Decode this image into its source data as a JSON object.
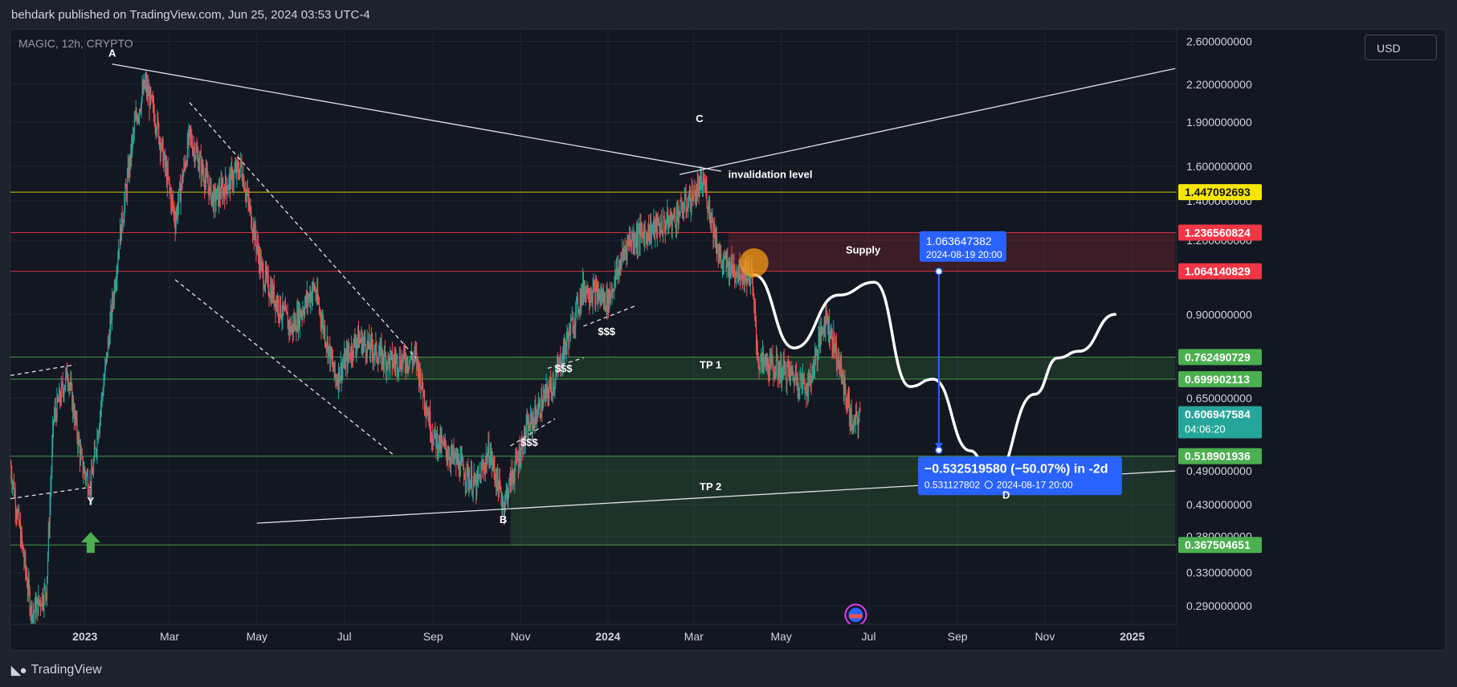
{
  "header": {
    "published": "behdark published on TradingView.com, Jun 25, 2024 03:53 UTC-4"
  },
  "symbol": "MAGIC, 12h, CRYPTO",
  "currency": "USD",
  "footer": {
    "brand": "TradingView"
  },
  "colors": {
    "bg": "#131722",
    "up": "#26a69a",
    "down": "#ef5350",
    "grid": "#1f2430",
    "green_zone": "#4caf50",
    "supply_zone": "#f23645",
    "yellow": "#f7e600",
    "blue": "#2962ff"
  },
  "chart_data": {
    "type": "candlestick",
    "y_scale": "log",
    "ylim": [
      0.27,
      2.72
    ],
    "y_ticks": [
      {
        "value": 2.6,
        "label": "2.600000000"
      },
      {
        "value": 2.2,
        "label": "2.200000000"
      },
      {
        "value": 1.9,
        "label": "1.900000000"
      },
      {
        "value": 1.6,
        "label": "1.600000000"
      },
      {
        "value": 1.4,
        "label": "1.400000000"
      },
      {
        "value": 1.2,
        "label": "1.200000000"
      },
      {
        "value": 0.9,
        "label": "0.900000000"
      },
      {
        "value": 0.65,
        "label": "0.650000000"
      },
      {
        "value": 0.49,
        "label": "0.490000000"
      },
      {
        "value": 0.43,
        "label": "0.430000000"
      },
      {
        "value": 0.38,
        "label": "0.380000000"
      },
      {
        "value": 0.33,
        "label": "0.330000000"
      },
      {
        "value": 0.29,
        "label": "0.290000000"
      }
    ],
    "x_ticks": [
      {
        "date": "2023-01-01",
        "label": "2023",
        "bold": true
      },
      {
        "date": "2023-03-01",
        "label": "Mar"
      },
      {
        "date": "2023-05-01",
        "label": "May"
      },
      {
        "date": "2023-07-01",
        "label": "Jul"
      },
      {
        "date": "2023-09-01",
        "label": "Sep"
      },
      {
        "date": "2023-11-01",
        "label": "Nov"
      },
      {
        "date": "2024-01-01",
        "label": "2024",
        "bold": true
      },
      {
        "date": "2024-03-01",
        "label": "Mar"
      },
      {
        "date": "2024-05-01",
        "label": "May"
      },
      {
        "date": "2024-07-01",
        "label": "Jul"
      },
      {
        "date": "2024-09-01",
        "label": "Sep"
      },
      {
        "date": "2024-11-01",
        "label": "Nov"
      },
      {
        "date": "2025-01-01",
        "label": "2025",
        "bold": true
      }
    ],
    "price_path": [
      {
        "date": "2022-11-10",
        "price": 0.5
      },
      {
        "date": "2022-11-25",
        "price": 0.28
      },
      {
        "date": "2022-12-05",
        "price": 0.31
      },
      {
        "date": "2022-12-10",
        "price": 0.6
      },
      {
        "date": "2022-12-20",
        "price": 0.72
      },
      {
        "date": "2022-12-30",
        "price": 0.5
      },
      {
        "date": "2023-01-05",
        "price": 0.46
      },
      {
        "date": "2023-01-15",
        "price": 0.72
      },
      {
        "date": "2023-01-25",
        "price": 1.2
      },
      {
        "date": "2023-02-05",
        "price": 1.9
      },
      {
        "date": "2023-02-12",
        "price": 2.2
      },
      {
        "date": "2023-02-20",
        "price": 1.9
      },
      {
        "date": "2023-03-05",
        "price": 1.3
      },
      {
        "date": "2023-03-15",
        "price": 1.8
      },
      {
        "date": "2023-04-01",
        "price": 1.4
      },
      {
        "date": "2023-04-20",
        "price": 1.6
      },
      {
        "date": "2023-05-05",
        "price": 1.05
      },
      {
        "date": "2023-05-25",
        "price": 0.85
      },
      {
        "date": "2023-06-10",
        "price": 1.0
      },
      {
        "date": "2023-06-25",
        "price": 0.7
      },
      {
        "date": "2023-07-10",
        "price": 0.82
      },
      {
        "date": "2023-08-01",
        "price": 0.75
      },
      {
        "date": "2023-08-20",
        "price": 0.76
      },
      {
        "date": "2023-09-01",
        "price": 0.56
      },
      {
        "date": "2023-09-20",
        "price": 0.5
      },
      {
        "date": "2023-10-01",
        "price": 0.46
      },
      {
        "date": "2023-10-10",
        "price": 0.53
      },
      {
        "date": "2023-10-20",
        "price": 0.43
      },
      {
        "date": "2023-11-05",
        "price": 0.57
      },
      {
        "date": "2023-11-25",
        "price": 0.7
      },
      {
        "date": "2023-12-15",
        "price": 1.0
      },
      {
        "date": "2024-01-01",
        "price": 0.95
      },
      {
        "date": "2024-01-15",
        "price": 1.2
      },
      {
        "date": "2024-02-15",
        "price": 1.3
      },
      {
        "date": "2024-03-08",
        "price": 1.5
      },
      {
        "date": "2024-03-20",
        "price": 1.1
      },
      {
        "date": "2024-04-10",
        "price": 1.05
      },
      {
        "date": "2024-04-15",
        "price": 0.75
      },
      {
        "date": "2024-05-05",
        "price": 0.72
      },
      {
        "date": "2024-05-20",
        "price": 0.68
      },
      {
        "date": "2024-06-01",
        "price": 0.9
      },
      {
        "date": "2024-06-10",
        "price": 0.75
      },
      {
        "date": "2024-06-20",
        "price": 0.58
      },
      {
        "date": "2024-06-25",
        "price": 0.607
      }
    ],
    "horizontal_levels": [
      {
        "value": 1.447092693,
        "label": "1.447092693",
        "color": "#f7e600",
        "text_color": "#131722",
        "line": "yellow"
      },
      {
        "value": 1.236560824,
        "label": "1.236560824",
        "color": "#f23645",
        "text_color": "#ffffff"
      },
      {
        "value": 1.064140829,
        "label": "1.064140829",
        "color": "#f23645",
        "text_color": "#ffffff"
      },
      {
        "value": 0.762490729,
        "label": "0.762490729",
        "color": "#4caf50",
        "text_color": "#ffffff"
      },
      {
        "value": 0.699902113,
        "label": "0.699902113",
        "color": "#4caf50",
        "text_color": "#ffffff"
      },
      {
        "value": 0.518901936,
        "label": "0.518901936",
        "color": "#4caf50",
        "text_color": "#ffffff"
      },
      {
        "value": 0.367504651,
        "label": "0.367504651",
        "color": "#4caf50",
        "text_color": "#ffffff"
      }
    ],
    "current_price": {
      "value": 0.606947584,
      "label": "0.606947584",
      "countdown": "04:06:20",
      "color": "#26a69a"
    },
    "zones": [
      {
        "name": "Supply",
        "from": "2024-03-25",
        "to": "2025-01-31",
        "low": 1.064140829,
        "high": 1.236560824,
        "color": "#f23645"
      },
      {
        "name": "TP 1",
        "from": "2023-08-01",
        "to": "2025-01-31",
        "low": 0.699902113,
        "high": 0.762490729,
        "color": "#4caf50"
      },
      {
        "name": "TP 2",
        "from": "2023-10-25",
        "to": "2025-01-31",
        "low": 0.367504651,
        "high": 0.518901936,
        "color": "#4caf50"
      }
    ],
    "wave_labels": [
      {
        "text": "A",
        "date": "2023-01-20",
        "price": 2.45
      },
      {
        "text": "Y",
        "date": "2023-01-05",
        "price": 0.43
      },
      {
        "text": "B",
        "date": "2023-10-20",
        "price": 0.4
      },
      {
        "text": "C",
        "date": "2024-03-05",
        "price": 1.9
      },
      {
        "text": "D",
        "date": "2024-10-05",
        "price": 0.44
      }
    ],
    "annotations": [
      {
        "text": "invalidation level",
        "date": "2024-03-25",
        "price": 1.53,
        "color": "#f7e600"
      },
      {
        "text": "Supply",
        "date": "2024-06-15",
        "price": 1.14,
        "color": "#ffffff"
      },
      {
        "text": "TP 1",
        "date": "2024-03-05",
        "price": 0.73,
        "color": "#ffffff"
      },
      {
        "text": "TP 2",
        "date": "2024-03-05",
        "price": 0.455,
        "color": "#ffffff"
      },
      {
        "text": "$$$",
        "date": "2023-12-25",
        "price": 0.83,
        "color": "#ffffff"
      },
      {
        "text": "$$$",
        "date": "2023-11-25",
        "price": 0.72,
        "color": "#ffffff"
      },
      {
        "text": "$$$",
        "date": "2023-11-01",
        "price": 0.54,
        "color": "#ffffff"
      }
    ],
    "trend_lines": [
      {
        "from": {
          "date": "2023-01-20",
          "price": 2.38
        },
        "to": {
          "date": "2024-03-20",
          "price": 1.57
        },
        "style": "solid"
      },
      {
        "from": {
          "date": "2024-02-20",
          "price": 1.55
        },
        "to": {
          "date": "2025-01-31",
          "price": 2.34
        },
        "style": "solid"
      },
      {
        "from": {
          "date": "2023-05-01",
          "price": 0.4
        },
        "to": {
          "date": "2025-01-31",
          "price": 0.49
        },
        "style": "solid"
      },
      {
        "from": {
          "date": "2023-03-15",
          "price": 2.05
        },
        "to": {
          "date": "2023-08-20",
          "price": 0.76
        },
        "style": "dashed"
      },
      {
        "from": {
          "date": "2023-03-05",
          "price": 1.03
        },
        "to": {
          "date": "2023-08-05",
          "price": 0.52
        },
        "style": "dashed"
      },
      {
        "from": {
          "date": "2022-11-10",
          "price": 0.71
        },
        "to": {
          "date": "2022-12-25",
          "price": 0.74
        },
        "style": "dashed"
      },
      {
        "from": {
          "date": "2022-11-10",
          "price": 0.44
        },
        "to": {
          "date": "2023-01-05",
          "price": 0.46
        },
        "style": "dashed"
      },
      {
        "from": {
          "date": "2023-10-25",
          "price": 0.54
        },
        "to": {
          "date": "2023-11-25",
          "price": 0.6
        },
        "style": "dashed"
      },
      {
        "from": {
          "date": "2023-11-20",
          "price": 0.73
        },
        "to": {
          "date": "2023-12-15",
          "price": 0.76
        },
        "style": "dashed"
      },
      {
        "from": {
          "date": "2023-12-15",
          "price": 0.86
        },
        "to": {
          "date": "2024-01-20",
          "price": 0.93
        },
        "style": "dashed"
      }
    ],
    "projection_path": [
      {
        "date": "2024-04-12",
        "price": 1.05
      },
      {
        "date": "2024-05-10",
        "price": 0.79
      },
      {
        "date": "2024-06-10",
        "price": 0.97
      },
      {
        "date": "2024-07-05",
        "price": 1.02
      },
      {
        "date": "2024-07-30",
        "price": 0.68
      },
      {
        "date": "2024-08-15",
        "price": 0.7
      },
      {
        "date": "2024-09-10",
        "price": 0.53
      },
      {
        "date": "2024-09-25",
        "price": 0.47
      },
      {
        "date": "2024-10-25",
        "price": 0.66
      },
      {
        "date": "2024-11-10",
        "price": 0.76
      },
      {
        "date": "2024-11-25",
        "price": 0.78
      },
      {
        "date": "2024-12-20",
        "price": 0.9
      }
    ],
    "measure": {
      "start": {
        "date": "2024-08-19",
        "price": 1.063647382
      },
      "end": {
        "date": "2024-08-17",
        "price": 0.531127802
      },
      "start_label": "1.063647382",
      "start_time": "2024-08-19 20:00",
      "change_text": "−0.532519580 (−50.07%) in -2d",
      "end_price_label": "0.531127802",
      "end_time_label": "2024-08-17  20:00",
      "color": "#2962ff"
    },
    "markers": [
      {
        "type": "circle",
        "date": "2024-04-12",
        "price": 1.1,
        "color": "#f59b14"
      },
      {
        "type": "arrow-up",
        "date": "2023-01-05",
        "price": 0.37,
        "color": "#4caf50"
      },
      {
        "type": "flag-event",
        "date": "2024-06-22",
        "price": 0.28
      }
    ]
  }
}
